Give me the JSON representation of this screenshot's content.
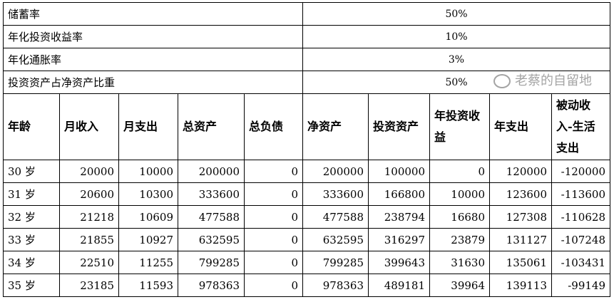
{
  "params": [
    {
      "label": "储蓄率",
      "value": "50%"
    },
    {
      "label": "年化投资收益率",
      "value": "10%"
    },
    {
      "label": "年化通胀率",
      "value": "3%"
    },
    {
      "label": "投资资产占净资产比重",
      "value": "50%"
    }
  ],
  "headers": [
    "年龄",
    "月收入",
    "月支出",
    "总资产",
    "总负债",
    "净资产",
    "投资资产",
    "年投资收益",
    "年支出",
    "被动收入-生活支出"
  ],
  "rows": [
    [
      "30 岁",
      "20000",
      "10000",
      "200000",
      "0",
      "200000",
      "100000",
      "0",
      "120000",
      "-120000"
    ],
    [
      "31 岁",
      "20600",
      "10300",
      "333600",
      "0",
      "333600",
      "166800",
      "10000",
      "123600",
      "-113600"
    ],
    [
      "32 岁",
      "21218",
      "10609",
      "477588",
      "0",
      "477588",
      "238794",
      "16680",
      "127308",
      "-110628"
    ],
    [
      "33 岁",
      "21855",
      "10927",
      "632595",
      "0",
      "632595",
      "316297",
      "23879",
      "131127",
      "-107248"
    ],
    [
      "34 岁",
      "22510",
      "11255",
      "799285",
      "0",
      "799285",
      "399643",
      "31630",
      "135061",
      "-103431"
    ],
    [
      "35 岁",
      "23185",
      "11593",
      "978363",
      "0",
      "978363",
      "489181",
      "39964",
      "139113",
      "-99149"
    ]
  ],
  "watermark": "老蔡的自留地"
}
